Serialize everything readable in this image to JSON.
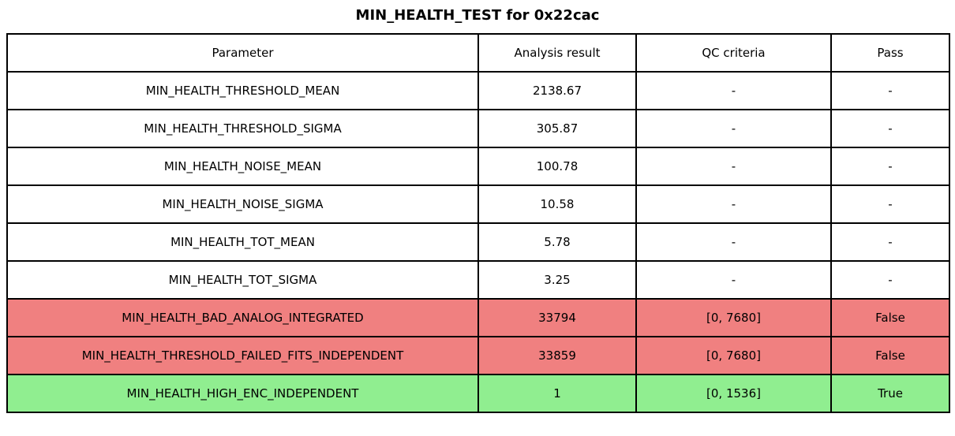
{
  "chart_data": {
    "type": "table",
    "title": "MIN_HEALTH_TEST for 0x22cac",
    "columns": [
      "Parameter",
      "Analysis result",
      "QC criteria",
      "Pass"
    ],
    "rows": [
      [
        "MIN_HEALTH_THRESHOLD_MEAN",
        "2138.67",
        "-",
        "-"
      ],
      [
        "MIN_HEALTH_THRESHOLD_SIGMA",
        "305.87",
        "-",
        "-"
      ],
      [
        "MIN_HEALTH_NOISE_MEAN",
        "100.78",
        "-",
        "-"
      ],
      [
        "MIN_HEALTH_NOISE_SIGMA",
        "10.58",
        "-",
        "-"
      ],
      [
        "MIN_HEALTH_TOT_MEAN",
        "5.78",
        "-",
        "-"
      ],
      [
        "MIN_HEALTH_TOT_SIGMA",
        "3.25",
        "-",
        "-"
      ],
      [
        "MIN_HEALTH_BAD_ANALOG_INTEGRATED",
        "33794",
        "[0, 7680]",
        "False"
      ],
      [
        "MIN_HEALTH_THRESHOLD_FAILED_FITS_INDEPENDENT",
        "33859",
        "[0, 7680]",
        "False"
      ],
      [
        "MIN_HEALTH_HIGH_ENC_INDEPENDENT",
        "1",
        "[0, 1536]",
        "True"
      ]
    ],
    "row_status": [
      "none",
      "none",
      "none",
      "none",
      "none",
      "none",
      "fail",
      "fail",
      "pass"
    ],
    "layout": {
      "header_row": true,
      "grid": true,
      "text_align": "center"
    }
  },
  "colors": {
    "fail_row": "#f08080",
    "pass_row": "#90ee90",
    "border": "#000000",
    "background": "#ffffff",
    "text": "#000000"
  }
}
